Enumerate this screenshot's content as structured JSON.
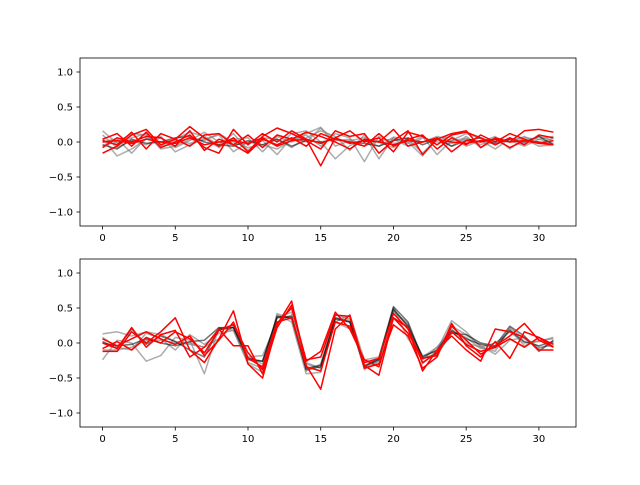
{
  "chart_data": [
    {
      "type": "line",
      "title": "",
      "xlabel": "",
      "ylabel": "",
      "xlim": [
        -1.55,
        32.55
      ],
      "ylim": [
        -1.2,
        1.2
      ],
      "xticks": [
        0,
        5,
        10,
        15,
        20,
        25,
        30
      ],
      "yticks": [
        -1.0,
        -0.5,
        0.0,
        0.5,
        1.0
      ],
      "xtick_labels": [
        "0",
        "5",
        "10",
        "15",
        "20",
        "25",
        "30"
      ],
      "ytick_labels": [
        "−1.0",
        "−0.5",
        "0.0",
        "0.5",
        "1.0"
      ],
      "grid": false,
      "series": [
        {
          "color": "#808080",
          "alpha": 0.65,
          "values": [
            0.16,
            -0.02,
            0.06,
            0.12,
            -0.1,
            -0.06,
            0.04,
            0.02,
            0.12,
            0.0,
            -0.08,
            -0.04,
            -0.1,
            0.02,
            0.12,
            0.21,
            -0.06,
            0.02,
            0.06,
            0.0,
            -0.08,
            0.05,
            0.0,
            0.08,
            0.02,
            0.12,
            0.05,
            -0.04,
            0.06,
            -0.02,
            0.08,
            0.02
          ]
        },
        {
          "color": "#808080",
          "alpha": 0.65,
          "values": [
            0.05,
            -0.2,
            -0.1,
            0.04,
            0.08,
            -0.14,
            -0.04,
            0.04,
            0.1,
            -0.14,
            0.0,
            0.05,
            -0.06,
            0.12,
            0.16,
            0.0,
            -0.24,
            -0.05,
            0.02,
            -0.06,
            0.07,
            0.04,
            -0.16,
            0.05,
            0.08,
            -0.06,
            0.02,
            -0.1,
            0.05,
            0.04,
            -0.06,
            -0.04
          ]
        },
        {
          "color": "#808080",
          "alpha": 0.65,
          "values": [
            -0.05,
            0.0,
            0.12,
            0.1,
            -0.06,
            0.04,
            0.14,
            0.08,
            -0.04,
            0.12,
            -0.12,
            0.06,
            0.04,
            -0.08,
            0.06,
            0.16,
            0.08,
            -0.12,
            0.1,
            -0.24,
            0.06,
            -0.02,
            0.08,
            -0.18,
            0.02,
            0.05,
            0.0,
            0.08,
            -0.1,
            0.06,
            0.04,
            0.08
          ]
        },
        {
          "color": "#808080",
          "alpha": 0.65,
          "values": [
            0.0,
            0.05,
            -0.16,
            0.06,
            0.0,
            0.02,
            -0.02,
            0.06,
            -0.08,
            0.04,
            0.06,
            -0.14,
            0.08,
            0.0,
            0.1,
            -0.06,
            0.12,
            0.06,
            -0.28,
            0.08,
            -0.02,
            0.0,
            -0.2,
            0.06,
            -0.06,
            0.08,
            -0.08,
            0.02,
            0.0,
            0.08,
            -0.02,
            0.06
          ]
        },
        {
          "color": "#808080",
          "alpha": 0.65,
          "values": [
            0.1,
            -0.08,
            0.02,
            -0.04,
            0.06,
            -0.08,
            0.02,
            0.14,
            0.0,
            -0.04,
            -0.02,
            0.02,
            -0.18,
            0.06,
            0.0,
            0.2,
            0.02,
            0.04,
            -0.06,
            0.02,
            0.04,
            -0.06,
            0.06,
            0.0,
            -0.02,
            0.04,
            -0.04,
            0.06,
            0.02,
            -0.06,
            0.04,
            -0.02
          ]
        },
        {
          "color": "#000000",
          "alpha": 0.55,
          "values": [
            -0.04,
            -0.1,
            0.04,
            -0.02,
            0.0,
            0.06,
            0.08,
            0.0,
            -0.04,
            -0.06,
            0.02,
            -0.04,
            0.04,
            -0.06,
            0.02,
            0.0,
            0.04,
            0.0,
            -0.02,
            -0.06,
            0.02,
            0.06,
            -0.04,
            0.04,
            -0.06,
            0.02,
            0.06,
            -0.02,
            0.04,
            0.0,
            0.08,
            -0.04
          ]
        },
        {
          "color": "#ff0000",
          "alpha": 1.0,
          "values": [
            -0.16,
            -0.06,
            0.1,
            0.18,
            -0.04,
            0.04,
            0.22,
            0.06,
            -0.06,
            0.06,
            -0.14,
            0.08,
            0.2,
            0.12,
            0.02,
            -0.1,
            0.16,
            0.08,
            0.12,
            -0.16,
            0.02,
            0.16,
            -0.18,
            0.04,
            0.12,
            0.16,
            -0.08,
            0.06,
            0.0,
            0.16,
            0.18,
            0.14
          ]
        },
        {
          "color": "#ff0000",
          "alpha": 1.0,
          "values": [
            0.04,
            0.12,
            -0.06,
            0.14,
            -0.08,
            0.0,
            0.1,
            -0.08,
            -0.16,
            0.18,
            -0.04,
            0.12,
            0.0,
            0.16,
            0.04,
            -0.34,
            0.06,
            0.16,
            0.0,
            0.06,
            -0.14,
            0.14,
            0.08,
            -0.04,
            0.1,
            0.14,
            0.06,
            -0.04,
            0.06,
            -0.04,
            0.1,
            0.06
          ]
        },
        {
          "color": "#ff0000",
          "alpha": 1.0,
          "values": [
            -0.08,
            0.06,
            0.0,
            0.08,
            0.06,
            -0.06,
            0.16,
            -0.12,
            0.04,
            -0.04,
            0.1,
            -0.08,
            0.1,
            0.04,
            0.14,
            0.08,
            0.0,
            -0.1,
            0.04,
            0.0,
            0.18,
            -0.06,
            0.0,
            0.06,
            -0.14,
            0.02,
            0.0,
            0.04,
            -0.08,
            0.02,
            0.0,
            -0.04
          ]
        },
        {
          "color": "#ff0000",
          "alpha": 1.0,
          "values": [
            0.02,
            -0.04,
            0.14,
            -0.1,
            0.12,
            0.04,
            -0.06,
            0.1,
            0.12,
            -0.04,
            -0.16,
            0.04,
            -0.04,
            0.06,
            -0.06,
            0.12,
            0.04,
            0.0,
            -0.06,
            0.12,
            -0.06,
            0.04,
            0.1,
            -0.1,
            0.06,
            -0.04,
            0.1,
            0.0,
            0.12,
            0.04,
            -0.02,
            -0.04
          ]
        },
        {
          "color": "#ff0000",
          "alpha": 1.0,
          "values": [
            0.0,
            0.02,
            -0.02,
            0.04,
            0.0,
            -0.02,
            0.06,
            -0.04,
            0.0,
            0.02,
            -0.02,
            0.06,
            -0.06,
            0.02,
            0.04,
            -0.02,
            0.06,
            -0.02,
            0.02,
            0.0,
            -0.04,
            0.02,
            0.0,
            0.04,
            0.0,
            -0.02,
            0.02,
            0.04,
            0.0,
            0.02,
            -0.02,
            0.02
          ]
        }
      ]
    },
    {
      "type": "line",
      "title": "",
      "xlabel": "",
      "ylabel": "",
      "xlim": [
        -1.55,
        32.55
      ],
      "ylim": [
        -1.2,
        1.2
      ],
      "xticks": [
        0,
        5,
        10,
        15,
        20,
        25,
        30
      ],
      "yticks": [
        -1.0,
        -0.5,
        0.0,
        0.5,
        1.0
      ],
      "xtick_labels": [
        "0",
        "5",
        "10",
        "15",
        "20",
        "25",
        "30"
      ],
      "ytick_labels": [
        "−1.0",
        "−0.5",
        "0.0",
        "0.5",
        "1.0"
      ],
      "grid": false,
      "series": [
        {
          "color": "#808080",
          "alpha": 0.65,
          "values": [
            0.13,
            0.16,
            0.1,
            0.16,
            0.12,
            0.02,
            0.0,
            -0.06,
            0.06,
            0.24,
            -0.2,
            -0.18,
            0.3,
            0.4,
            -0.3,
            -0.36,
            0.3,
            0.2,
            -0.24,
            -0.2,
            0.5,
            0.06,
            -0.2,
            -0.06,
            0.2,
            0.0,
            -0.06,
            0.0,
            0.16,
            0.0,
            0.02,
            0.08
          ]
        },
        {
          "color": "#808080",
          "alpha": 0.65,
          "values": [
            -0.24,
            0.04,
            0.0,
            -0.26,
            -0.18,
            0.08,
            0.04,
            -0.44,
            0.22,
            0.18,
            -0.28,
            -0.36,
            0.4,
            0.3,
            -0.44,
            -0.42,
            0.36,
            0.32,
            -0.36,
            -0.24,
            0.46,
            0.28,
            -0.3,
            -0.1,
            0.32,
            0.16,
            -0.06,
            -0.12,
            0.22,
            0.06,
            -0.08,
            0.0
          ]
        },
        {
          "color": "#808080",
          "alpha": 0.65,
          "values": [
            0.08,
            -0.06,
            -0.1,
            0.14,
            0.06,
            -0.1,
            0.12,
            -0.02,
            0.14,
            0.18,
            -0.3,
            -0.42,
            0.42,
            0.34,
            -0.4,
            -0.3,
            0.4,
            0.34,
            -0.38,
            -0.26,
            0.5,
            0.22,
            -0.18,
            -0.12,
            0.24,
            0.12,
            -0.04,
            -0.16,
            0.04,
            0.08,
            -0.06,
            -0.04
          ]
        },
        {
          "color": "#808080",
          "alpha": 0.65,
          "values": [
            -0.1,
            -0.1,
            -0.06,
            0.04,
            0.04,
            0.0,
            -0.02,
            -0.06,
            0.2,
            0.26,
            -0.2,
            -0.3,
            0.36,
            0.44,
            -0.28,
            -0.36,
            0.3,
            0.4,
            -0.24,
            -0.3,
            0.44,
            0.26,
            -0.24,
            -0.06,
            0.16,
            0.08,
            -0.08,
            -0.08,
            0.2,
            -0.04,
            0.04,
            0.06
          ]
        },
        {
          "color": "#000000",
          "alpha": 0.55,
          "values": [
            0.02,
            -0.08,
            0.2,
            -0.02,
            0.1,
            0.02,
            -0.1,
            -0.2,
            0.2,
            0.22,
            -0.22,
            -0.26,
            0.38,
            0.36,
            -0.36,
            -0.32,
            0.36,
            0.3,
            -0.34,
            -0.22,
            0.52,
            0.3,
            -0.22,
            -0.16,
            0.14,
            0.12,
            0.0,
            -0.04,
            0.24,
            0.1,
            -0.12,
            0.04
          ]
        },
        {
          "color": "#000000",
          "alpha": 0.55,
          "values": [
            0.0,
            -0.04,
            -0.02,
            0.06,
            0.0,
            -0.04,
            0.02,
            0.04,
            0.22,
            0.22,
            -0.24,
            -0.26,
            0.36,
            0.38,
            -0.38,
            -0.34,
            0.34,
            0.3,
            -0.32,
            -0.24,
            0.48,
            0.24,
            -0.2,
            -0.1,
            0.18,
            0.06,
            -0.02,
            -0.06,
            0.18,
            0.02,
            -0.04,
            0.02
          ]
        },
        {
          "color": "#ff0000",
          "alpha": 1.0,
          "values": [
            -0.12,
            -0.12,
            0.16,
            0.0,
            0.16,
            0.36,
            -0.1,
            -0.28,
            0.06,
            0.46,
            -0.3,
            -0.5,
            0.26,
            0.6,
            -0.32,
            -0.66,
            0.2,
            0.4,
            -0.32,
            -0.46,
            0.36,
            0.22,
            -0.4,
            -0.1,
            0.1,
            -0.1,
            -0.26,
            0.2,
            0.16,
            0.08,
            -0.1,
            -0.1
          ]
        },
        {
          "color": "#ff0000",
          "alpha": 1.0,
          "values": [
            0.0,
            -0.08,
            0.22,
            -0.06,
            0.12,
            0.18,
            -0.2,
            -0.06,
            0.2,
            -0.04,
            -0.04,
            -0.44,
            0.22,
            0.54,
            -0.26,
            -0.12,
            0.44,
            0.2,
            -0.24,
            -0.34,
            0.36,
            0.14,
            -0.22,
            -0.18,
            0.24,
            0.04,
            -0.16,
            -0.04,
            0.1,
            0.28,
            0.04,
            -0.06
          ]
        },
        {
          "color": "#ff0000",
          "alpha": 1.0,
          "values": [
            -0.08,
            0.02,
            -0.1,
            0.08,
            0.0,
            0.16,
            0.06,
            -0.14,
            0.18,
            0.26,
            -0.14,
            -0.38,
            0.28,
            0.5,
            -0.24,
            -0.2,
            0.4,
            0.38,
            -0.36,
            -0.3,
            0.26,
            0.1,
            -0.36,
            -0.2,
            0.28,
            -0.04,
            -0.2,
            0.02,
            -0.22,
            0.16,
            0.08,
            -0.06
          ]
        },
        {
          "color": "#ff0000",
          "alpha": 1.0,
          "values": [
            0.06,
            -0.04,
            0.06,
            0.16,
            0.06,
            -0.02,
            0.1,
            -0.18,
            0.04,
            0.3,
            -0.22,
            -0.34,
            0.3,
            0.36,
            -0.34,
            -0.4,
            0.3,
            0.24,
            -0.28,
            -0.22,
            0.42,
            0.2,
            -0.28,
            -0.14,
            0.16,
            -0.02,
            -0.12,
            -0.06,
            0.06,
            -0.06,
            0.08,
            -0.02
          ]
        }
      ]
    }
  ]
}
